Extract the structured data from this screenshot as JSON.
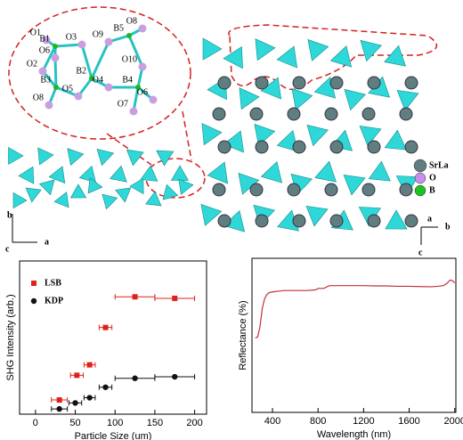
{
  "structure": {
    "atom_labels": [
      "O1",
      "B1",
      "O3",
      "O9",
      "B5",
      "O8",
      "O6",
      "O2",
      "B2",
      "O10",
      "B3",
      "O4",
      "B4",
      "O5",
      "O8",
      "O6",
      "O7"
    ],
    "legend": [
      "SrLa",
      "O",
      "B"
    ],
    "axes_left": [
      "b",
      "c",
      "a"
    ],
    "axes_right": [
      "a",
      "b",
      "c"
    ]
  },
  "chart_data": [
    {
      "type": "scatter",
      "xlabel": "Particle Size (um)",
      "ylabel": "SHG Intensity (arb.)",
      "xlim": [
        -20,
        215
      ],
      "ylim": [
        0,
        20.5
      ],
      "xticks": [
        0,
        50,
        100,
        150,
        200
      ],
      "legend": "upper left",
      "series": [
        {
          "name": "LSB",
          "color": "#e0201b",
          "marker": "square",
          "x": [
            30,
            52,
            68,
            88,
            125,
            175
          ],
          "x_err": [
            10,
            8,
            7,
            8,
            25,
            25
          ],
          "values": [
            1.9,
            5.2,
            6.6,
            11.6,
            15.7,
            15.5
          ]
        },
        {
          "name": "KDP",
          "color": "#111111",
          "marker": "circle",
          "x": [
            30,
            50,
            68,
            88,
            125,
            175
          ],
          "x_err": [
            10,
            8,
            7,
            8,
            25,
            25
          ],
          "values": [
            0.7,
            1.5,
            2.2,
            3.6,
            4.8,
            5.0
          ]
        }
      ]
    },
    {
      "type": "line",
      "xlabel": "Wavelength (nm)",
      "ylabel": "Reflectance (%)",
      "xlim": [
        220,
        2010
      ],
      "ylim": [
        -6,
        104
      ],
      "xticks": [
        400,
        800,
        1200,
        1600,
        2000
      ],
      "color": "#c0303a",
      "x": [
        250,
        270,
        290,
        310,
        330,
        350,
        370,
        400,
        450,
        500,
        600,
        700,
        780,
        800,
        850,
        900,
        1000,
        1100,
        1200,
        1300,
        1400,
        1500,
        1600,
        1700,
        1800,
        1850,
        1900,
        1930,
        1960,
        1980,
        2000
      ],
      "values": [
        47,
        48,
        55,
        68,
        75,
        78,
        79.5,
        80,
        80.5,
        81,
        81,
        81,
        81.5,
        82.5,
        82.5,
        84.5,
        84.5,
        84.5,
        84.5,
        84.3,
        84.3,
        84,
        84,
        83.8,
        83.7,
        84,
        84.5,
        86,
        88.5,
        88,
        86.5
      ]
    }
  ]
}
